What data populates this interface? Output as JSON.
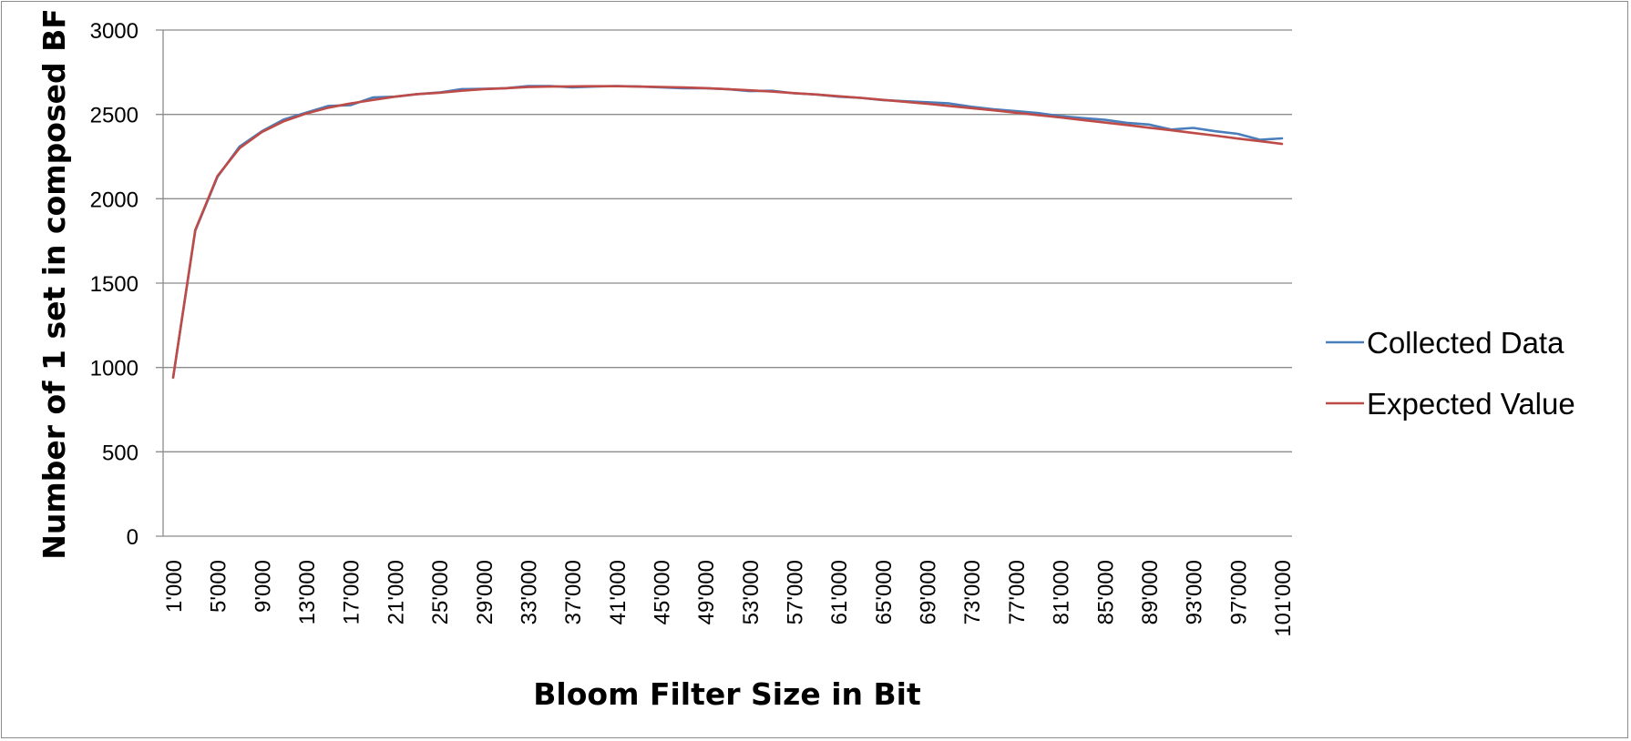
{
  "chart_data": {
    "type": "line",
    "title": "",
    "xlabel": "Bloom Filter Size in Bit",
    "ylabel": "Number of 1 set in composed BF",
    "ylim": [
      0,
      3000
    ],
    "yticks": [
      0,
      500,
      1000,
      1500,
      2000,
      2500,
      3000
    ],
    "xtick_labels": [
      "1'000",
      "5'000",
      "9'000",
      "13'000",
      "17'000",
      "21'000",
      "25'000",
      "29'000",
      "33'000",
      "37'000",
      "41'000",
      "45'000",
      "49'000",
      "53'000",
      "57'000",
      "61'000",
      "65'000",
      "69'000",
      "73'000",
      "77'000",
      "81'000",
      "85'000",
      "89'000",
      "93'000",
      "97'000",
      "101'000"
    ],
    "grid": "horizontal",
    "legend_position": "right",
    "x": [
      1000,
      3000,
      5000,
      7000,
      9000,
      11000,
      13000,
      15000,
      17000,
      19000,
      21000,
      23000,
      25000,
      27000,
      29000,
      31000,
      33000,
      35000,
      37000,
      39000,
      41000,
      43000,
      45000,
      47000,
      49000,
      51000,
      53000,
      55000,
      57000,
      59000,
      61000,
      63000,
      65000,
      67000,
      69000,
      71000,
      73000,
      75000,
      77000,
      79000,
      81000,
      83000,
      85000,
      87000,
      89000,
      91000,
      93000,
      95000,
      97000,
      99000,
      101000
    ],
    "series": [
      {
        "name": "Collected Data",
        "color": "#4a7ebb",
        "values": [
          940,
          1810,
          2130,
          2310,
          2400,
          2470,
          2510,
          2550,
          2555,
          2600,
          2605,
          2620,
          2630,
          2650,
          2652,
          2655,
          2668,
          2668,
          2660,
          2665,
          2668,
          2665,
          2660,
          2655,
          2655,
          2650,
          2638,
          2640,
          2625,
          2618,
          2605,
          2598,
          2585,
          2578,
          2572,
          2565,
          2545,
          2530,
          2520,
          2508,
          2490,
          2478,
          2468,
          2450,
          2440,
          2410,
          2420,
          2400,
          2385,
          2350,
          2358
        ]
      },
      {
        "name": "Expected Value",
        "color": "#be4b48",
        "values": [
          940,
          1815,
          2135,
          2300,
          2395,
          2460,
          2505,
          2540,
          2565,
          2585,
          2605,
          2620,
          2628,
          2640,
          2650,
          2655,
          2662,
          2665,
          2666,
          2667,
          2667,
          2665,
          2663,
          2660,
          2656,
          2650,
          2643,
          2635,
          2626,
          2618,
          2608,
          2598,
          2586,
          2575,
          2563,
          2550,
          2537,
          2524,
          2510,
          2496,
          2482,
          2467,
          2452,
          2437,
          2421,
          2406,
          2390,
          2374,
          2357,
          2341,
          2325
        ]
      }
    ]
  }
}
